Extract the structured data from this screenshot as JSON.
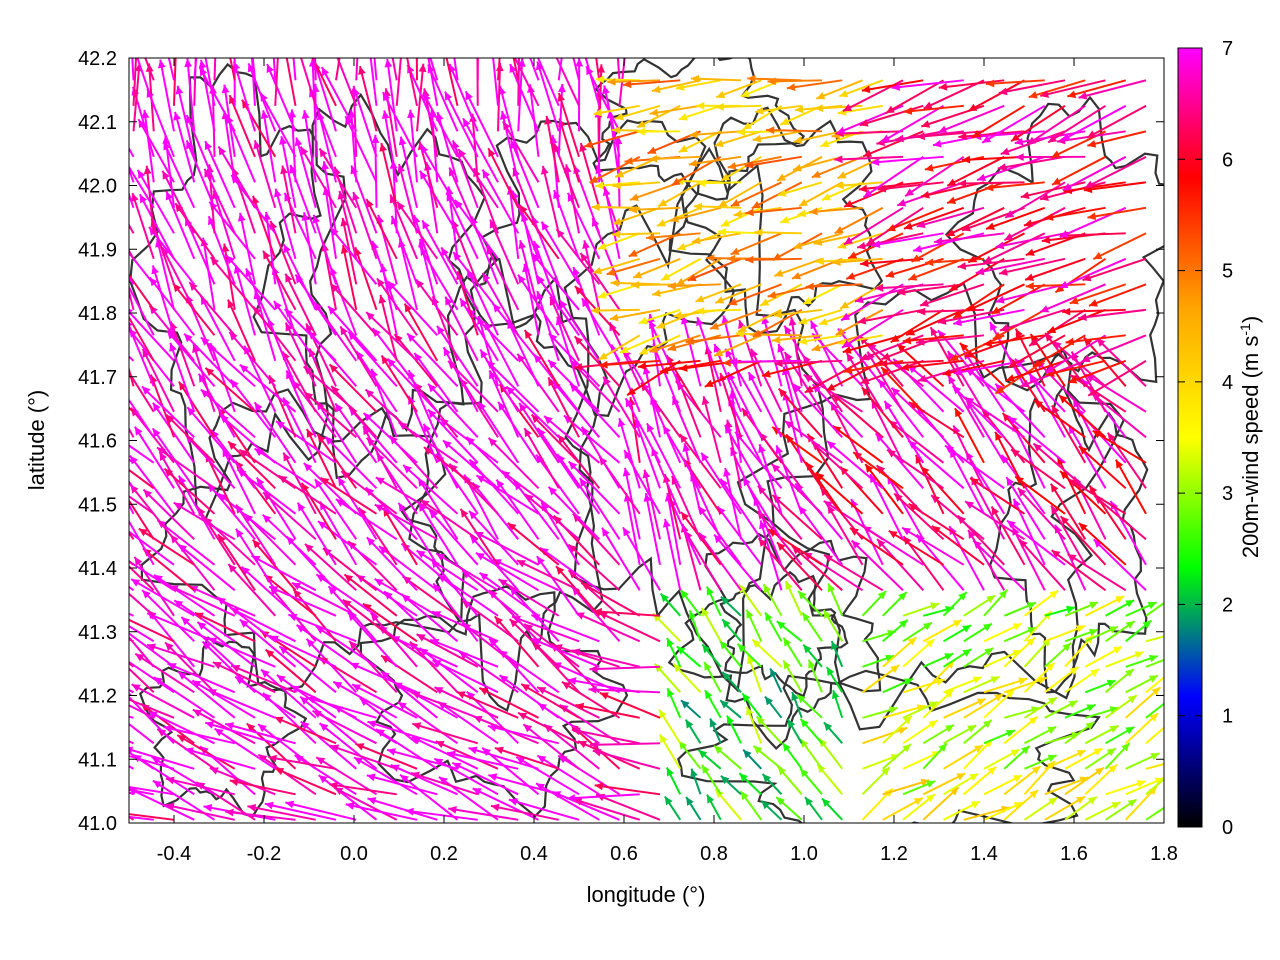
{
  "chart_data": {
    "type": "vector-field",
    "xlabel": "longitude (°)",
    "ylabel": "latitude (°)",
    "xlim": [
      -0.5,
      1.8
    ],
    "ylim": [
      41.0,
      42.2
    ],
    "xticks": [
      -0.4,
      -0.2,
      0.0,
      0.2,
      0.4,
      0.6,
      0.8,
      1.0,
      1.2,
      1.4,
      1.6,
      1.8
    ],
    "xtick_labels": [
      "-0.4",
      "-0.2",
      "0.0",
      "0.2",
      "0.4",
      "0.6",
      "0.8",
      "1.0",
      "1.2",
      "1.4",
      "1.6",
      "1.8"
    ],
    "yticks": [
      41.0,
      41.1,
      41.2,
      41.3,
      41.4,
      41.5,
      41.6,
      41.7,
      41.8,
      41.9,
      42.0,
      42.1,
      42.2
    ],
    "ytick_labels": [
      "41.0",
      "41.1",
      "41.2",
      "41.3",
      "41.4",
      "41.5",
      "41.6",
      "41.7",
      "41.8",
      "41.9",
      "42.0",
      "42.1",
      "42.2"
    ],
    "grid": false,
    "colorbar": {
      "label_main": "200m-wind speed (m s",
      "label_sup": "-1",
      "label_end": ")",
      "range": [
        0,
        7
      ],
      "ticks": [
        0,
        1,
        2,
        3,
        4,
        5,
        6,
        7
      ],
      "tick_labels": [
        "0",
        "1",
        "2",
        "3",
        "4",
        "5",
        "6",
        "7"
      ],
      "colors": [
        "#000000",
        "#0000ff",
        "#00ff00",
        "#ffff00",
        "#ffa500",
        "#ff0000",
        "#ff00ff"
      ]
    },
    "contour_color": "#333333",
    "wind_regions": [
      {
        "region": "west",
        "lon_range": [
          -0.5,
          0.6
        ],
        "lat_range": [
          41.0,
          42.2
        ],
        "speed": 7,
        "direction": "toward north-west"
      },
      {
        "region": "north-central",
        "lon_range": [
          0.6,
          1.2
        ],
        "lat_range": [
          41.75,
          42.2
        ],
        "speed": 4.5,
        "direction": "toward west"
      },
      {
        "region": "north-east",
        "lon_range": [
          1.2,
          1.8
        ],
        "lat_range": [
          41.7,
          42.2
        ],
        "speed": 6,
        "direction": "toward west"
      },
      {
        "region": "central-east",
        "lon_range": [
          1.0,
          1.8
        ],
        "lat_range": [
          41.35,
          41.7
        ],
        "speed": 7,
        "direction": "toward north-west"
      },
      {
        "region": "south-central",
        "lon_range": [
          0.7,
          1.1
        ],
        "lat_range": [
          41.15,
          41.4
        ],
        "speed": 2.5,
        "direction": "variable"
      },
      {
        "region": "south-east",
        "lon_range": [
          1.1,
          1.8
        ],
        "lat_range": [
          41.0,
          41.3
        ],
        "speed": 3.6,
        "direction": "toward north-east"
      }
    ]
  }
}
